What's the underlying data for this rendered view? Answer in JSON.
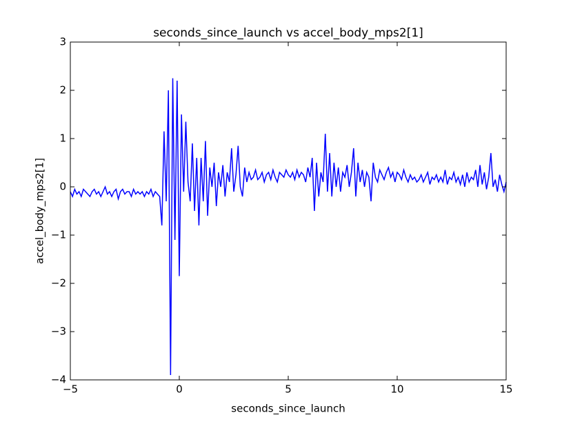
{
  "chart_data": {
    "type": "line",
    "title": "seconds_since_launch vs accel_body_mps2[1]",
    "x_label": "seconds_since_launch",
    "y_label": "accel_body_mps2[1]",
    "xlim": [
      -5,
      15
    ],
    "ylim": [
      -4,
      3
    ],
    "xticks": [
      {
        "value": -5,
        "label": "−5"
      },
      0,
      5,
      10,
      15
    ],
    "yticks": [
      {
        "value": -4,
        "label": "−4"
      },
      {
        "value": -3,
        "label": "−3"
      },
      {
        "value": -2,
        "label": "−2"
      },
      {
        "value": -1,
        "label": "−1"
      },
      0,
      1,
      2,
      3
    ],
    "grid": false,
    "x": [
      -5.0,
      -4.9,
      -4.8,
      -4.7,
      -4.6,
      -4.5,
      -4.4,
      -4.3,
      -4.2,
      -4.1,
      -4.0,
      -3.9,
      -3.8,
      -3.7,
      -3.6,
      -3.5,
      -3.4,
      -3.3,
      -3.2,
      -3.1,
      -3.0,
      -2.9,
      -2.8,
      -2.7,
      -2.6,
      -2.5,
      -2.4,
      -2.3,
      -2.2,
      -2.1,
      -2.0,
      -1.9,
      -1.8,
      -1.7,
      -1.6,
      -1.5,
      -1.4,
      -1.3,
      -1.2,
      -1.1,
      -1.0,
      -0.9,
      -0.8,
      -0.7,
      -0.6,
      -0.5,
      -0.4,
      -0.3,
      -0.2,
      -0.1,
      0.0,
      0.1,
      0.2,
      0.3,
      0.4,
      0.5,
      0.6,
      0.7,
      0.8,
      0.9,
      1.0,
      1.1,
      1.2,
      1.3,
      1.4,
      1.5,
      1.6,
      1.7,
      1.8,
      1.9,
      2.0,
      2.1,
      2.2,
      2.3,
      2.4,
      2.5,
      2.6,
      2.7,
      2.8,
      2.9,
      3.0,
      3.1,
      3.2,
      3.3,
      3.4,
      3.5,
      3.6,
      3.7,
      3.8,
      3.9,
      4.0,
      4.1,
      4.2,
      4.3,
      4.4,
      4.5,
      4.6,
      4.7,
      4.8,
      4.9,
      5.0,
      5.1,
      5.2,
      5.3,
      5.4,
      5.5,
      5.6,
      5.7,
      5.8,
      5.9,
      6.0,
      6.1,
      6.2,
      6.3,
      6.4,
      6.5,
      6.6,
      6.7,
      6.8,
      6.9,
      7.0,
      7.1,
      7.2,
      7.3,
      7.4,
      7.5,
      7.6,
      7.7,
      7.8,
      7.9,
      8.0,
      8.1,
      8.2,
      8.3,
      8.4,
      8.5,
      8.6,
      8.7,
      8.8,
      8.9,
      9.0,
      9.1,
      9.2,
      9.3,
      9.4,
      9.5,
      9.6,
      9.7,
      9.8,
      9.9,
      10.0,
      10.1,
      10.2,
      10.3,
      10.4,
      10.5,
      10.6,
      10.7,
      10.8,
      10.9,
      11.0,
      11.1,
      11.2,
      11.3,
      11.4,
      11.5,
      11.6,
      11.7,
      11.8,
      11.9,
      12.0,
      12.1,
      12.2,
      12.3,
      12.4,
      12.5,
      12.6,
      12.7,
      12.8,
      12.9,
      13.0,
      13.1,
      13.2,
      13.3,
      13.4,
      13.5,
      13.6,
      13.7,
      13.8,
      13.9,
      14.0,
      14.1,
      14.2,
      14.3,
      14.4,
      14.5,
      14.6,
      14.7,
      14.8,
      14.9,
      15.0
    ],
    "series": [
      {
        "color": "#0000ff",
        "values": [
          -0.1,
          -0.2,
          -0.05,
          -0.15,
          -0.1,
          -0.2,
          -0.05,
          -0.1,
          -0.15,
          -0.2,
          -0.1,
          -0.05,
          -0.15,
          -0.1,
          -0.2,
          -0.1,
          0.0,
          -0.15,
          -0.1,
          -0.2,
          -0.1,
          -0.05,
          -0.25,
          -0.1,
          -0.05,
          -0.15,
          -0.1,
          -0.1,
          -0.2,
          -0.05,
          -0.15,
          -0.1,
          -0.15,
          -0.1,
          -0.2,
          -0.1,
          -0.15,
          -0.05,
          -0.2,
          -0.1,
          -0.15,
          -0.2,
          -0.8,
          1.15,
          -0.3,
          2.0,
          -3.9,
          2.25,
          -1.1,
          2.2,
          -1.85,
          1.5,
          -0.1,
          1.35,
          0.1,
          -0.3,
          0.9,
          -0.5,
          0.6,
          -0.8,
          0.6,
          -0.3,
          0.95,
          -0.6,
          0.4,
          0.0,
          0.5,
          -0.4,
          0.3,
          0.0,
          0.45,
          -0.2,
          0.3,
          0.1,
          0.8,
          -0.1,
          0.25,
          0.85,
          0.0,
          -0.2,
          0.4,
          0.1,
          0.3,
          0.15,
          0.2,
          0.35,
          0.15,
          0.2,
          0.3,
          0.1,
          0.25,
          0.3,
          0.15,
          0.35,
          0.2,
          0.1,
          0.3,
          0.25,
          0.2,
          0.35,
          0.25,
          0.2,
          0.3,
          0.15,
          0.35,
          0.2,
          0.3,
          0.25,
          0.1,
          0.4,
          0.2,
          0.6,
          -0.5,
          0.5,
          -0.2,
          0.3,
          0.1,
          1.1,
          -0.1,
          0.7,
          -0.2,
          0.5,
          0.0,
          0.4,
          -0.1,
          0.3,
          0.2,
          0.45,
          0.0,
          0.3,
          0.8,
          -0.2,
          0.5,
          0.1,
          0.35,
          0.0,
          0.3,
          0.2,
          -0.3,
          0.5,
          0.2,
          0.1,
          0.35,
          0.25,
          0.15,
          0.3,
          0.4,
          0.2,
          0.3,
          0.1,
          0.3,
          0.25,
          0.15,
          0.35,
          0.2,
          0.1,
          0.25,
          0.15,
          0.2,
          0.1,
          0.15,
          0.25,
          0.1,
          0.2,
          0.3,
          0.05,
          0.2,
          0.15,
          0.25,
          0.1,
          0.2,
          0.1,
          0.35,
          0.05,
          0.2,
          0.15,
          0.3,
          0.1,
          0.2,
          0.05,
          0.25,
          0.0,
          0.3,
          0.1,
          0.2,
          0.15,
          0.35,
          0.0,
          0.45,
          0.05,
          0.3,
          -0.05,
          0.2,
          0.7,
          0.0,
          0.15,
          -0.1,
          0.25,
          0.05,
          -0.1,
          0.1
        ]
      }
    ]
  }
}
